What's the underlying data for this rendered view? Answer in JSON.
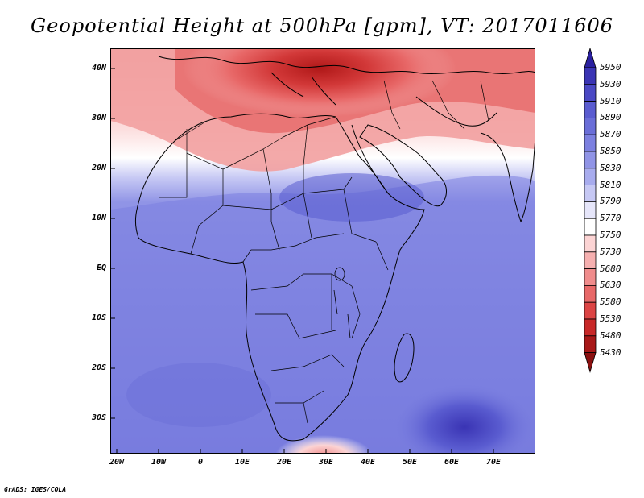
{
  "title": "Geopotential Height at 500hPa [gpm], VT: 2017011606",
  "credit": "GrADS: IGES/COLA",
  "lat_labels": [
    "40N",
    "30N",
    "20N",
    "10N",
    "EQ",
    "10S",
    "20S",
    "30S"
  ],
  "lon_labels": [
    "20W",
    "10W",
    "0",
    "10E",
    "20E",
    "30E",
    "40E",
    "50E",
    "60E",
    "70E"
  ],
  "colorbar": {
    "levels": [
      "5950",
      "5930",
      "5910",
      "5890",
      "5870",
      "5850",
      "5830",
      "5810",
      "5790",
      "5770",
      "5750",
      "5730",
      "5680",
      "5630",
      "5580",
      "5530",
      "5480",
      "5430"
    ],
    "colors": [
      "#2a20a0",
      "#3a34b4",
      "#4a48c4",
      "#5a5cd0",
      "#6a6ed8",
      "#7c80e0",
      "#9094e6",
      "#a8acee",
      "#c6c8f4",
      "#e6e6fa",
      "#ffffff",
      "#fcd4d4",
      "#f6b0b0",
      "#f08c8c",
      "#e86868",
      "#dc4444",
      "#c82828",
      "#a81818",
      "#8a1010"
    ]
  },
  "colors": {
    "frame": "#000000",
    "border_lines": "#000000"
  }
}
